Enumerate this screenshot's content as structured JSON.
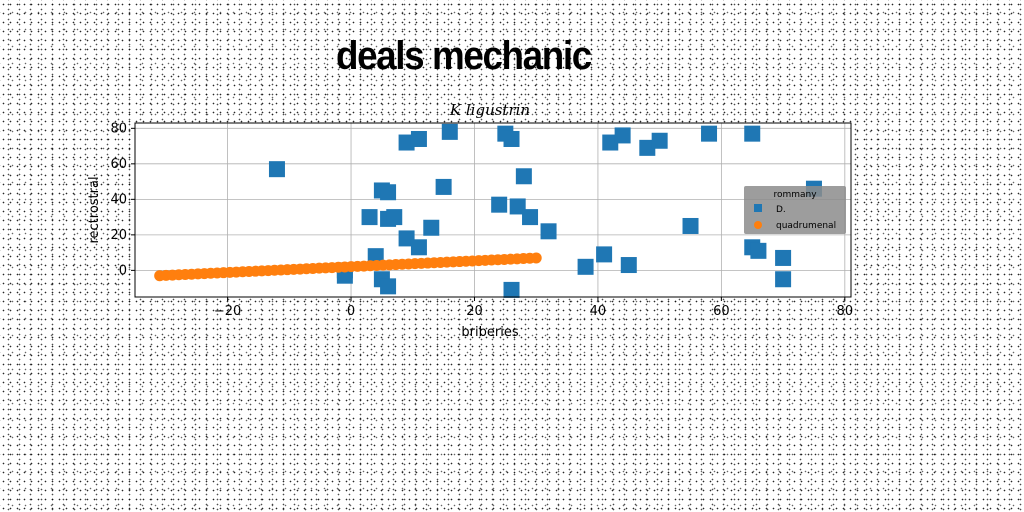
{
  "headline": "deals mechanic",
  "colors": {
    "series_1": "#1f77b4",
    "series_2": "#ff7f0e",
    "grid": "#b0b0b0",
    "legend_bg": "#8c8c8c"
  },
  "chart_data": {
    "type": "scatter",
    "title": "K ligustrin",
    "xlabel": "briberies",
    "ylabel": "rectrostral",
    "xlim": [
      -35,
      81
    ],
    "ylim": [
      -15,
      83
    ],
    "xticks": [
      -20,
      0,
      20,
      40,
      60,
      80
    ],
    "xtick_labels": [
      "−20",
      "0",
      "20",
      "40",
      "60",
      "80"
    ],
    "yticks": [
      0,
      20,
      40,
      60,
      80
    ],
    "ytick_labels": [
      "0",
      "20",
      "40",
      "60",
      "80"
    ],
    "grid": true,
    "legend": {
      "title": "rommany",
      "placement": "right",
      "entries": [
        "D.",
        "quadrumenal"
      ]
    },
    "series": [
      {
        "name": "D.",
        "marker": "square",
        "points": [
          [
            -12,
            57
          ],
          [
            -1,
            0
          ],
          [
            -1,
            -3
          ],
          [
            3,
            30
          ],
          [
            4,
            8
          ],
          [
            5,
            45
          ],
          [
            5,
            -5
          ],
          [
            6,
            29
          ],
          [
            6,
            44
          ],
          [
            6,
            -9
          ],
          [
            7,
            30
          ],
          [
            9,
            72
          ],
          [
            9,
            18
          ],
          [
            11,
            74
          ],
          [
            11,
            13
          ],
          [
            13,
            24
          ],
          [
            15,
            47
          ],
          [
            16,
            78
          ],
          [
            24,
            37
          ],
          [
            25,
            77
          ],
          [
            26,
            74
          ],
          [
            26,
            -11
          ],
          [
            27,
            36
          ],
          [
            28,
            53
          ],
          [
            29,
            30
          ],
          [
            32,
            22
          ],
          [
            38,
            2
          ],
          [
            41,
            9
          ],
          [
            42,
            72
          ],
          [
            44,
            76
          ],
          [
            45,
            3
          ],
          [
            48,
            69
          ],
          [
            50,
            73
          ],
          [
            55,
            25
          ],
          [
            58,
            77
          ],
          [
            65,
            77
          ],
          [
            65,
            13
          ],
          [
            66,
            11
          ],
          [
            70,
            7
          ],
          [
            70,
            -5
          ],
          [
            75,
            46
          ]
        ]
      },
      {
        "name": "quadrumenal",
        "marker": "circle",
        "line": {
          "x_start": -31,
          "x_end": 30,
          "y_start": -3,
          "y_end": 7,
          "count": 60
        }
      }
    ]
  }
}
